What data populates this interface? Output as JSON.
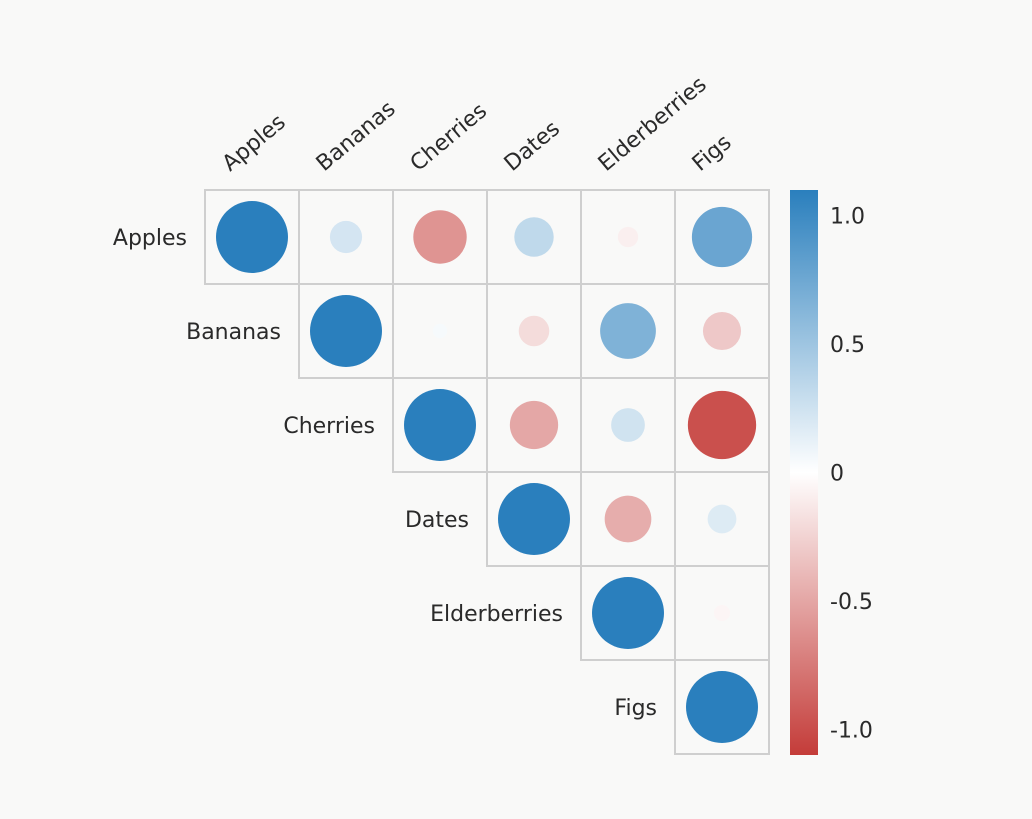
{
  "chart_data": {
    "type": "correlation-matrix",
    "layout": "upper-triangular",
    "variables": [
      "Apples",
      "Bananas",
      "Cherries",
      "Dates",
      "Elderberries",
      "Figs"
    ],
    "matrix": [
      [
        1.0,
        0.2,
        -0.55,
        0.3,
        -0.08,
        0.7
      ],
      [
        0.2,
        1.0,
        0.04,
        -0.18,
        0.6,
        -0.28
      ],
      [
        -0.55,
        0.04,
        1.0,
        -0.45,
        0.22,
        -0.9
      ],
      [
        0.3,
        -0.18,
        -0.45,
        1.0,
        -0.42,
        0.16
      ],
      [
        -0.08,
        0.6,
        0.22,
        -0.42,
        1.0,
        -0.05
      ],
      [
        0.7,
        -0.28,
        -0.9,
        0.16,
        -0.05,
        1.0
      ]
    ],
    "colorbar": {
      "min": -1.1,
      "max": 1.1,
      "ticks": [
        1.0,
        0.5,
        0,
        -0.5,
        -1.0
      ],
      "tick_labels": [
        "1.0",
        "0.5",
        "0",
        "-0.5",
        "-1.0"
      ],
      "colors": {
        "negative": "#c43c39",
        "zero": "#ffffff",
        "positive": "#2a7fbd"
      }
    }
  }
}
